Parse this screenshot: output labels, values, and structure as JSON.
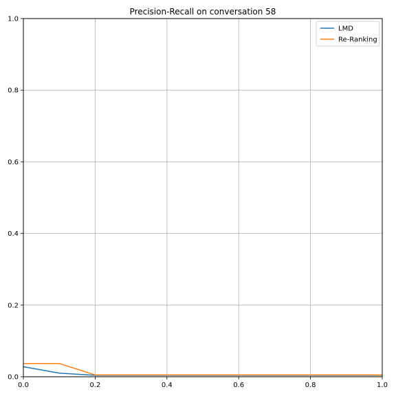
{
  "chart_data": {
    "type": "line",
    "title": "Precision-Recall on conversation 58",
    "xlabel": "",
    "ylabel": "",
    "xlim": [
      0.0,
      1.0
    ],
    "ylim": [
      0.0,
      1.0
    ],
    "x_ticks": [
      "0.0",
      "0.2",
      "0.4",
      "0.6",
      "0.8",
      "1.0"
    ],
    "y_ticks": [
      "0.0",
      "0.2",
      "0.4",
      "0.6",
      "0.8",
      "1.0"
    ],
    "grid": true,
    "legend_position": "top-right",
    "series": [
      {
        "name": "LMD",
        "color": "#1f77b4",
        "x": [
          0.0,
          0.1,
          0.2,
          0.3,
          0.4,
          0.5,
          0.6,
          0.7,
          0.8,
          0.9,
          1.0
        ],
        "y": [
          0.028,
          0.01,
          0.004,
          0.004,
          0.004,
          0.004,
          0.004,
          0.004,
          0.004,
          0.004,
          0.004
        ]
      },
      {
        "name": "Re-Ranking",
        "color": "#ff7f0e",
        "x": [
          0.0,
          0.1,
          0.2,
          0.3,
          0.4,
          0.5,
          0.6,
          0.7,
          0.8,
          0.9,
          1.0
        ],
        "y": [
          0.037,
          0.037,
          0.005,
          0.005,
          0.005,
          0.005,
          0.005,
          0.005,
          0.005,
          0.005,
          0.005
        ]
      }
    ]
  }
}
